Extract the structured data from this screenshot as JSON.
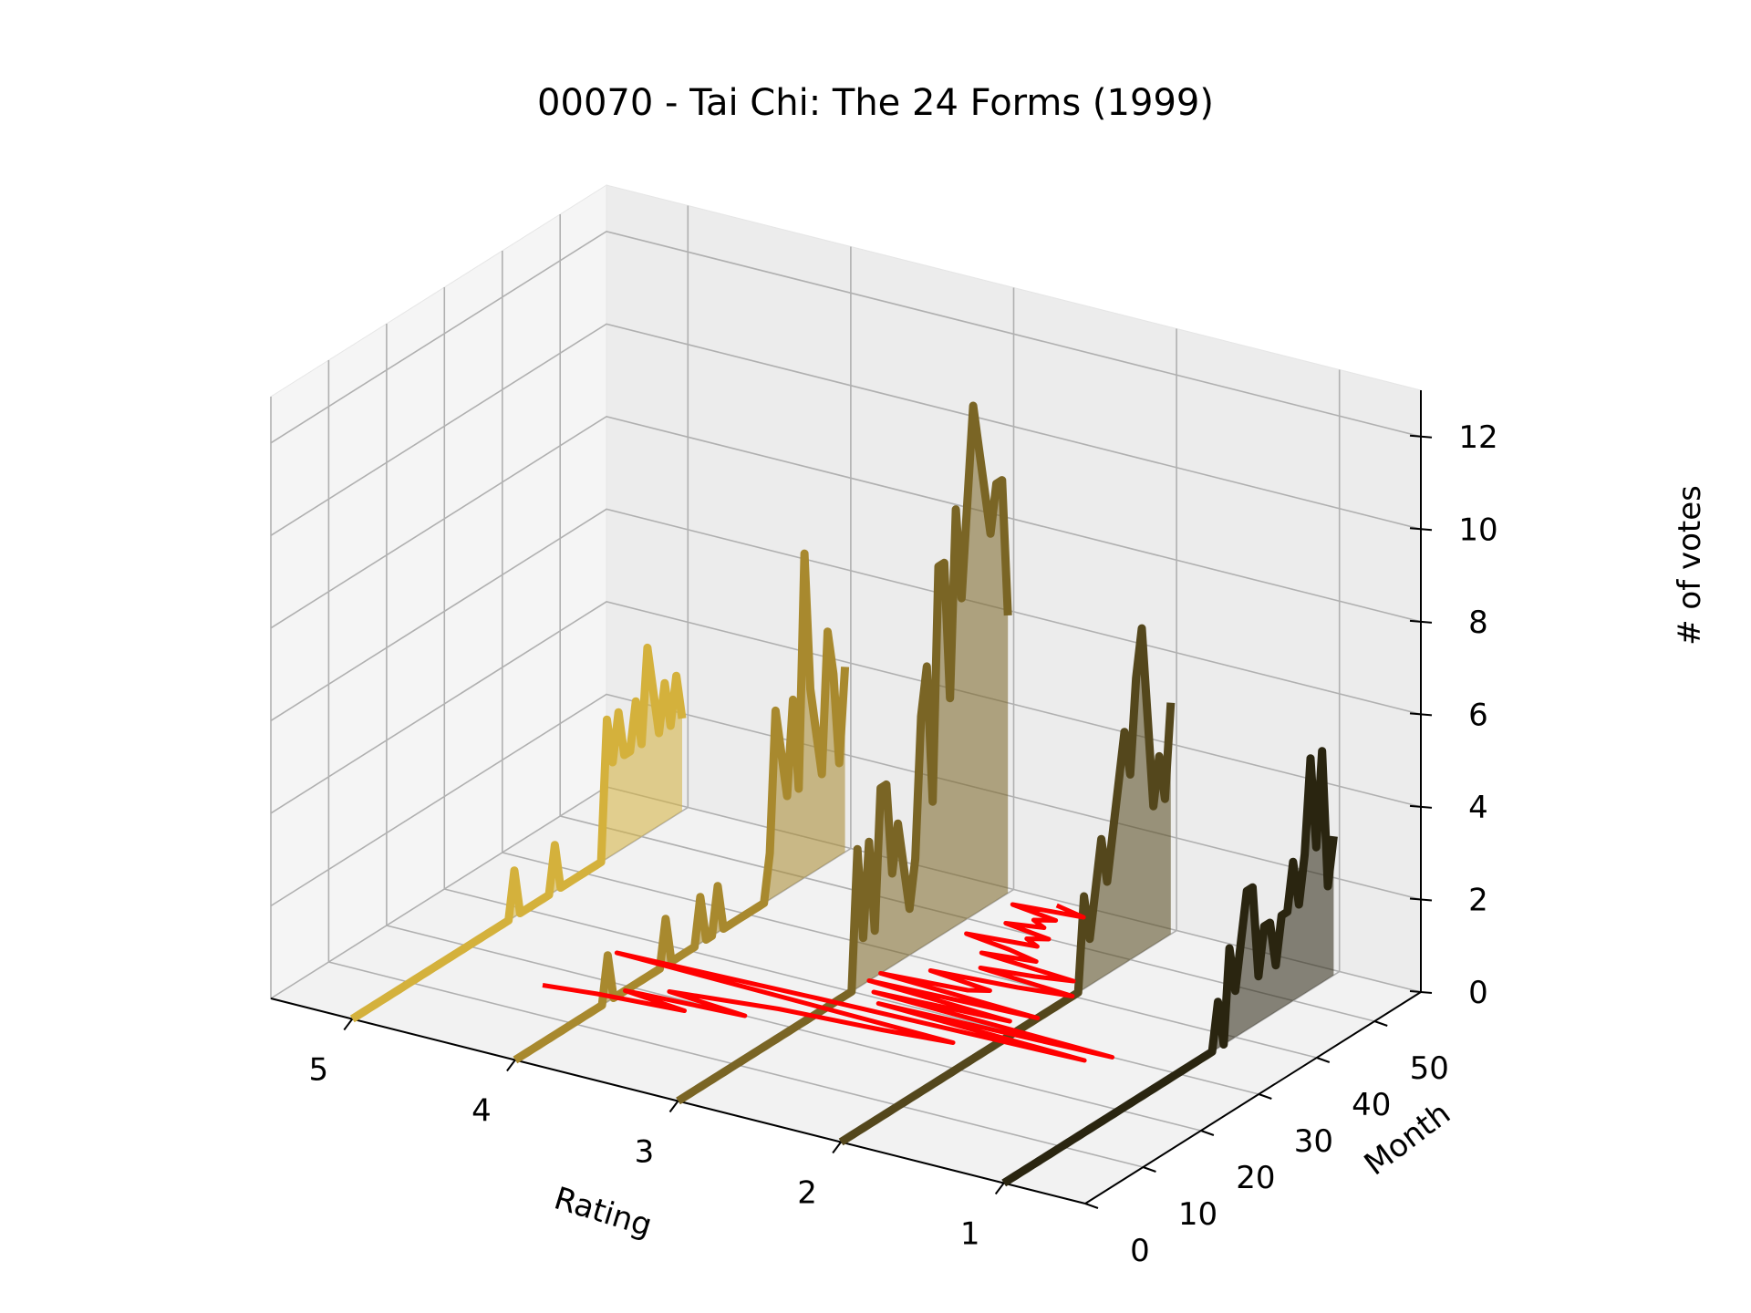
{
  "chart_data": {
    "type": "line",
    "title": "00070 - Tai Chi: The 24 Forms (1999)",
    "xlabel": "Rating",
    "ylabel": "Month",
    "zlabel": "# of votes",
    "x_ticks": [
      "5",
      "4",
      "3",
      "2",
      "1"
    ],
    "y_ticks": [
      "0",
      "10",
      "20",
      "30",
      "40",
      "50"
    ],
    "z_ticks": [
      "0",
      "2",
      "4",
      "6",
      "8",
      "10",
      "12"
    ],
    "xlim": [
      0.5,
      5.5
    ],
    "ylim": [
      0,
      58
    ],
    "zlim": [
      0,
      13
    ],
    "grid": true,
    "series": [
      {
        "rating": 5,
        "color": "#d4b13c",
        "values": [
          0,
          0,
          0,
          0,
          0,
          0,
          0,
          0,
          0,
          0,
          0,
          0,
          0,
          0,
          0,
          0,
          0,
          0,
          0,
          0,
          0,
          0,
          0,
          0,
          0,
          0,
          0,
          0,
          1,
          0,
          0,
          0,
          0,
          0,
          0,
          1,
          0,
          0,
          0,
          0,
          0,
          0,
          0,
          0,
          3,
          2,
          3,
          2,
          2,
          3,
          2,
          4,
          3,
          2,
          3,
          2,
          3,
          2
        ]
      },
      {
        "rating": 4,
        "color": "#a8892e",
        "values": [
          0,
          0,
          0,
          0,
          0,
          0,
          0,
          0,
          0,
          0,
          0,
          0,
          0,
          0,
          0,
          0,
          1,
          0,
          0,
          0,
          0,
          0,
          0,
          0,
          0,
          0,
          1,
          0,
          0,
          0,
          0,
          0,
          1,
          0,
          0,
          1,
          0,
          0,
          0,
          0,
          0,
          0,
          0,
          0,
          1,
          4,
          3,
          2,
          4,
          2,
          7,
          4,
          3,
          2,
          5,
          4,
          2,
          4
        ]
      },
      {
        "rating": 3,
        "color": "#7a6525",
        "values": [
          0,
          0,
          0,
          0,
          0,
          0,
          0,
          0,
          0,
          0,
          0,
          0,
          0,
          0,
          0,
          0,
          0,
          0,
          0,
          0,
          0,
          0,
          0,
          0,
          0,
          0,
          0,
          0,
          0,
          0,
          0,
          3,
          1,
          3,
          1,
          4,
          4,
          2,
          3,
          2,
          1,
          2,
          5,
          6,
          3,
          8,
          8,
          5,
          9,
          7,
          9,
          11,
          10,
          9,
          8,
          9,
          9,
          6
        ]
      },
      {
        "rating": 2,
        "color": "#54471c",
        "values": [
          0,
          0,
          0,
          0,
          0,
          0,
          0,
          0,
          0,
          0,
          0,
          0,
          0,
          0,
          0,
          0,
          0,
          0,
          0,
          0,
          0,
          0,
          0,
          0,
          0,
          0,
          0,
          0,
          0,
          0,
          0,
          0,
          0,
          0,
          0,
          0,
          0,
          0,
          0,
          0,
          0,
          0,
          2,
          1,
          2,
          3,
          2,
          3,
          4,
          5,
          4,
          6,
          7,
          5,
          3,
          4,
          3,
          5
        ]
      },
      {
        "rating": 1,
        "color": "#2a2510",
        "values": [
          0,
          0,
          0,
          0,
          0,
          0,
          0,
          0,
          0,
          0,
          0,
          0,
          0,
          0,
          0,
          0,
          0,
          0,
          0,
          0,
          0,
          0,
          0,
          0,
          0,
          0,
          0,
          0,
          0,
          0,
          0,
          0,
          0,
          0,
          0,
          0,
          0,
          1,
          0,
          2,
          1,
          2,
          3,
          3,
          1,
          2,
          2,
          1,
          2,
          2,
          3,
          2,
          3,
          5,
          3,
          5,
          2,
          3
        ]
      }
    ],
    "mean_line": {
      "color": "#ff0000",
      "values": [
        null,
        null,
        null,
        null,
        null,
        null,
        null,
        null,
        null,
        null,
        null,
        null,
        null,
        null,
        null,
        null,
        4.4,
        4.1,
        3.6,
        4.0,
        3.3,
        3.8,
        3.5,
        3.2,
        2.6,
        2.2,
        4.3,
        3.1,
        1.5,
        2.8,
        1.4,
        2.9,
        2.1,
        3.0,
        2.0,
        3.0,
        2.5,
        2.4,
        2.8,
        2.3,
        2.0,
        2.6,
        2.3,
        2.1,
        2.7,
        2.4,
        2.6,
        2.9,
        2.5,
        2.6,
        2.5,
        2.8,
        2.6,
        2.7,
        2.6,
        2.9,
        2.5,
        2.7
      ]
    }
  }
}
